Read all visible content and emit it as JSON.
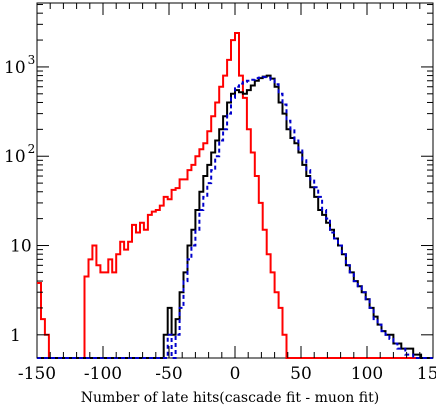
{
  "chart_data": {
    "type": "line",
    "title": "",
    "xlabel": "Number of late hits(cascade fit - muon fit)",
    "ylabel": "",
    "xlim": [
      -150,
      150
    ],
    "ylim": [
      0.55,
      5200
    ],
    "yscale": "log",
    "grid": false,
    "legend": "none",
    "x_ticks": [
      -150,
      -100,
      -50,
      0,
      50,
      100,
      150
    ],
    "x_tick_labels": [
      "-150",
      "-100",
      "-50",
      "0",
      "50",
      "100",
      "150"
    ],
    "y_ticks": [
      {
        "value": 1,
        "mantissa": "1",
        "exponent": ""
      },
      {
        "value": 10,
        "mantissa": "10",
        "exponent": ""
      },
      {
        "value": 100,
        "mantissa": "10",
        "exponent": "2"
      },
      {
        "value": 1000,
        "mantissa": "10",
        "exponent": "3"
      }
    ],
    "series": [
      {
        "color": "#ff0000",
        "style": "solid",
        "width": 2,
        "x": [
          -150,
          -147,
          -144,
          -141,
          -138,
          -135,
          -132,
          -129,
          -126,
          -123,
          -120,
          -117,
          -114,
          -111,
          -108,
          -105,
          -102,
          -99,
          -96,
          -93,
          -90,
          -87,
          -84,
          -81,
          -78,
          -75,
          -72,
          -69,
          -66,
          -63,
          -60,
          -57,
          -54,
          -51,
          -48,
          -45,
          -42,
          -39,
          -36,
          -33,
          -30,
          -27,
          -24,
          -21,
          -18,
          -15,
          -12,
          -9,
          -6,
          -3,
          0,
          3,
          6,
          9,
          12,
          15,
          18,
          21,
          24,
          27,
          30,
          33,
          36,
          39,
          42,
          45,
          48,
          51,
          54,
          57,
          60,
          63,
          66,
          69,
          72,
          75,
          78,
          81,
          84,
          87,
          90,
          93,
          96,
          99,
          102,
          105,
          108,
          111,
          114,
          117,
          120,
          123,
          126,
          129,
          132,
          135,
          138,
          141,
          144,
          147
        ],
        "y": [
          3.8,
          1.5,
          1.0,
          0.55,
          0.55,
          0.55,
          0.55,
          0.55,
          0.55,
          0.55,
          0.55,
          0.55,
          4.5,
          7,
          10,
          6,
          5,
          5,
          7,
          5,
          8,
          11,
          9,
          11,
          17,
          14,
          18,
          15,
          22,
          24,
          25,
          28,
          35,
          33,
          42,
          44,
          55,
          55,
          70,
          80,
          100,
          120,
          140,
          190,
          280,
          400,
          600,
          800,
          1200,
          2000,
          2400,
          800,
          450,
          200,
          110,
          60,
          30,
          15,
          8,
          5,
          3,
          2,
          1,
          0.55,
          0.55,
          0.55,
          0.55,
          0.55,
          0.55,
          0.55,
          0.55,
          0.55,
          0.55,
          0.55,
          0.55,
          0.55,
          0.55,
          0.55,
          0.55,
          0.55,
          0.55,
          0.55,
          0.55,
          0.55,
          0.55,
          0.55,
          0.55,
          0.55,
          0.55,
          0.55,
          0.55,
          0.55,
          0.55,
          0.55,
          0.55,
          0.55,
          0.55,
          0.55,
          0.55,
          0.55
        ]
      },
      {
        "color": "#000000",
        "style": "solid",
        "width": 2,
        "x": [
          -150,
          -147,
          -144,
          -141,
          -138,
          -135,
          -132,
          -129,
          -126,
          -123,
          -120,
          -117,
          -114,
          -111,
          -108,
          -105,
          -102,
          -99,
          -96,
          -93,
          -90,
          -87,
          -84,
          -81,
          -78,
          -75,
          -72,
          -69,
          -66,
          -63,
          -60,
          -57,
          -54,
          -51,
          -48,
          -45,
          -42,
          -39,
          -36,
          -33,
          -30,
          -27,
          -24,
          -21,
          -18,
          -15,
          -12,
          -9,
          -6,
          -3,
          0,
          3,
          6,
          9,
          12,
          15,
          18,
          21,
          24,
          27,
          30,
          33,
          36,
          39,
          42,
          45,
          48,
          51,
          54,
          57,
          60,
          63,
          66,
          69,
          72,
          75,
          78,
          81,
          84,
          87,
          90,
          93,
          96,
          99,
          102,
          105,
          108,
          111,
          114,
          117,
          120,
          123,
          126,
          129,
          132,
          135,
          138,
          141,
          144,
          147
        ],
        "y": [
          0.55,
          0.55,
          0.55,
          0.55,
          0.55,
          0.55,
          0.55,
          0.55,
          0.55,
          0.55,
          0.55,
          0.55,
          0.55,
          0.55,
          0.55,
          0.55,
          0.55,
          0.55,
          0.55,
          0.55,
          0.55,
          0.55,
          0.55,
          0.55,
          0.55,
          0.55,
          0.55,
          0.55,
          0.55,
          0.55,
          0.55,
          0.55,
          1,
          2,
          1,
          1.5,
          3,
          5,
          10,
          15,
          25,
          40,
          60,
          80,
          110,
          150,
          200,
          280,
          400,
          500,
          550,
          520,
          500,
          550,
          620,
          700,
          750,
          780,
          800,
          740,
          600,
          400,
          300,
          200,
          160,
          140,
          110,
          80,
          60,
          45,
          35,
          25,
          22,
          18,
          15,
          12,
          10,
          8,
          6,
          5,
          4,
          3.5,
          3,
          2.5,
          2,
          1.6,
          1.3,
          1.1,
          1.0,
          1.0,
          0.8,
          0.8,
          0.7,
          0.7,
          0.7,
          0.6,
          0.6,
          0.55,
          0.55,
          0.55
        ]
      },
      {
        "color": "#0000cc",
        "style": "dashed",
        "width": 2,
        "x": [
          -150,
          -147,
          -144,
          -141,
          -138,
          -135,
          -132,
          -129,
          -126,
          -123,
          -120,
          -117,
          -114,
          -111,
          -108,
          -105,
          -102,
          -99,
          -96,
          -93,
          -90,
          -87,
          -84,
          -81,
          -78,
          -75,
          -72,
          -69,
          -66,
          -63,
          -60,
          -57,
          -54,
          -51,
          -48,
          -45,
          -42,
          -39,
          -36,
          -33,
          -30,
          -27,
          -24,
          -21,
          -18,
          -15,
          -12,
          -9,
          -6,
          -3,
          0,
          3,
          6,
          9,
          12,
          15,
          18,
          21,
          24,
          27,
          30,
          33,
          36,
          39,
          42,
          45,
          48,
          51,
          54,
          57,
          60,
          63,
          66,
          69,
          72,
          75,
          78,
          81,
          84,
          87,
          90,
          93,
          96,
          99,
          102,
          105,
          108,
          111,
          114,
          117,
          120,
          123,
          126,
          129,
          132,
          135,
          138,
          141,
          144,
          147
        ],
        "y": [
          0.55,
          0.55,
          0.55,
          0.55,
          0.55,
          0.55,
          0.55,
          0.55,
          0.55,
          0.55,
          0.55,
          0.55,
          0.55,
          0.55,
          0.55,
          0.55,
          0.55,
          0.55,
          0.55,
          0.55,
          0.55,
          0.55,
          0.55,
          0.55,
          0.55,
          0.55,
          0.55,
          0.55,
          0.55,
          0.55,
          0.55,
          0.55,
          0.55,
          1,
          0.55,
          1,
          2,
          4,
          7,
          10,
          15,
          25,
          35,
          50,
          70,
          100,
          150,
          200,
          300,
          450,
          600,
          650,
          680,
          700,
          720,
          750,
          760,
          770,
          760,
          720,
          640,
          500,
          380,
          250,
          200,
          150,
          120,
          90,
          70,
          55,
          45,
          35,
          25,
          20,
          14,
          12,
          10,
          8,
          6,
          5,
          4,
          3.5,
          3,
          2.5,
          2,
          1.5,
          1.3,
          1.1,
          1.0,
          0.9,
          0.8,
          0.7,
          0.7,
          0.6,
          0.6,
          0.55,
          0.55,
          0.55,
          0.55,
          0.55
        ]
      }
    ]
  }
}
